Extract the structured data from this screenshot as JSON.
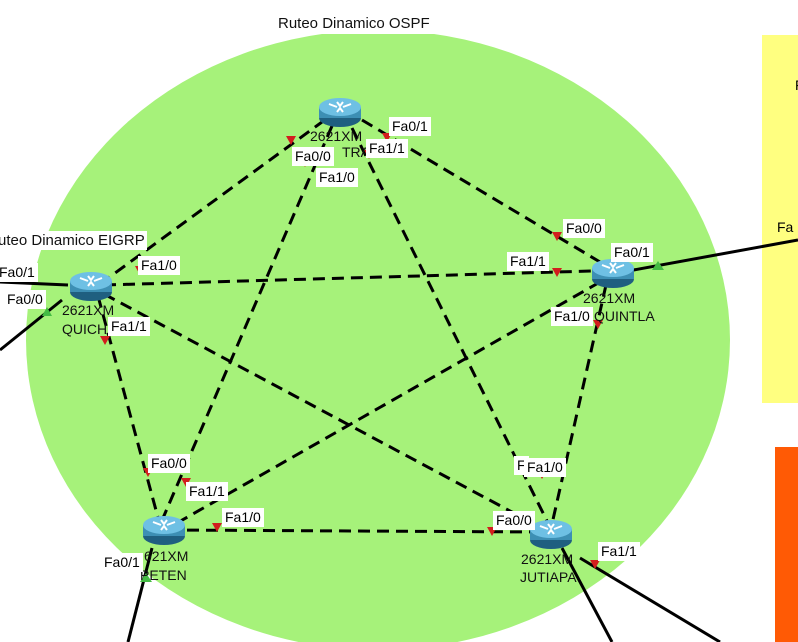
{
  "colors": {
    "ospf_area": "#a6f27a",
    "yellow_panel": "#ffff80",
    "orange_panel": "#ff5a05",
    "link": "#000000",
    "port_down": "#d21e1e",
    "port_up": "#44bb44",
    "router_body": "#3d8fb4"
  },
  "areas": {
    "ospf_label": "Ruteo Dinamico OSPF",
    "eigrp_label": "uteo Dinamico EIGRP",
    "yellow_fragment": "F"
  },
  "routers": {
    "central": {
      "model": "2621XM",
      "name": "TRA",
      "icon": "router-icon"
    },
    "quiche": {
      "model": "2621XM",
      "name": "QUICH",
      "icon": "router-icon"
    },
    "quintla": {
      "model": "2621XM",
      "name": "QUINTLA",
      "icon": "router-icon"
    },
    "peten": {
      "model": "621XM",
      "name": "PETEN",
      "icon": "router-icon"
    },
    "jutiapa": {
      "model": "2621XM",
      "name": "JUTIAPA",
      "icon": "router-icon"
    }
  },
  "ports": {
    "central_fa01": "Fa0/1",
    "central_fa00": "Fa0/0",
    "central_fa11": "Fa1/1",
    "central_fa10": "Fa1/0",
    "quintla_fa00": "Fa0/0",
    "quintla_fa01": "Fa0/1",
    "quintla_fa11": "Fa1/1",
    "quintla_fa10": "Fa1/0",
    "quiche_fa01": "Fa0/1",
    "quiche_fa00": "Fa0/0",
    "quiche_fa10": "Fa1/0",
    "quiche_fa11": "Fa1/1",
    "peten_fa00": "Fa0/0",
    "peten_fa11": "Fa1/1",
    "peten_fa10": "Fa1/0",
    "peten_fa01": "Fa0/1",
    "jutiapa_fa10": "Fa1/0",
    "jutiapa_partial": "F",
    "jutiapa_fa00": "Fa0/0",
    "jutiapa_fa11": "Fa1/1",
    "right_edge_fa": "Fa"
  }
}
